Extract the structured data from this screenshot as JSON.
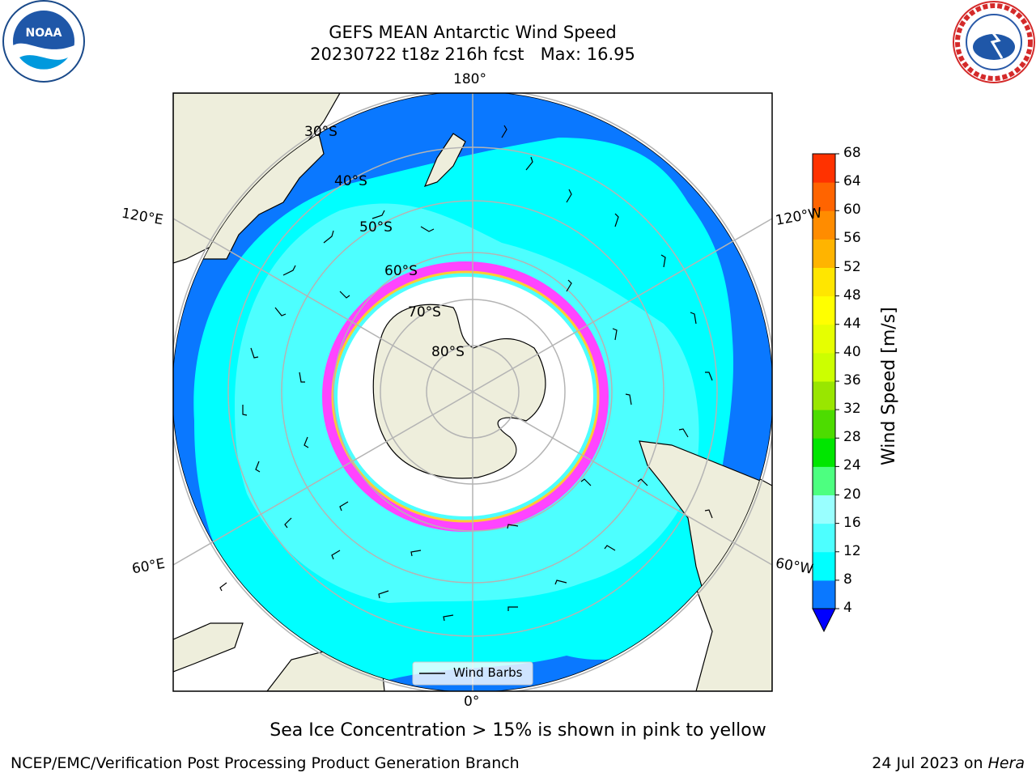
{
  "header": {
    "title_line1": "GEFS MEAN Antarctic Wind Speed",
    "title_line2": "20230722 t18z 216h fcst   Max: 16.95"
  },
  "logos": {
    "noaa": {
      "text": "NOAA",
      "ring_text": "NATIONAL OCEANIC AND ATMOSPHERIC ADMINISTRATION · U.S. DEPARTMENT OF COMMERCE"
    },
    "nws": {
      "ring_text": "NATIONAL WEATHER SERVICE"
    }
  },
  "map": {
    "longitude_labels": {
      "top": "180°",
      "bottom": "0°",
      "upper_left": "120°E",
      "lower_left": "60°E",
      "upper_right": "120°W",
      "lower_right": "60°W"
    },
    "latitude_labels": [
      "30°S",
      "40°S",
      "50°S",
      "60°S",
      "70°S",
      "80°S"
    ],
    "legend_label": "Wind Barbs",
    "colors": {
      "ocean_dark": "#0a78ff",
      "ocean_cyan": "#00ffff",
      "ocean_light": "#4dffff",
      "land": "#eeeedc",
      "grid": "#b4b4b4"
    }
  },
  "colorbar": {
    "label": "Wind Speed [m/s]",
    "ticks": [
      "4",
      "8",
      "12",
      "16",
      "20",
      "24",
      "28",
      "32",
      "36",
      "40",
      "44",
      "48",
      "52",
      "56",
      "60",
      "64",
      "68"
    ],
    "colors": [
      "#0a78ff",
      "#00ffff",
      "#4dffff",
      "#99ffff",
      "#4dff80",
      "#00e600",
      "#4ddc00",
      "#99e600",
      "#ccff00",
      "#e6ff00",
      "#ffff00",
      "#ffe600",
      "#ffb400",
      "#ff8c00",
      "#ff6400",
      "#ff3200",
      "#ff0000"
    ],
    "under_color": "#0000ff"
  },
  "caption": "Sea Ice Concentration > 15% is shown in pink to yellow",
  "footer": {
    "credit": "NCEP/EMC/Verification Post Processing Product Generation Branch",
    "date": "24 Jul 2023 on",
    "machine": "Hera"
  }
}
